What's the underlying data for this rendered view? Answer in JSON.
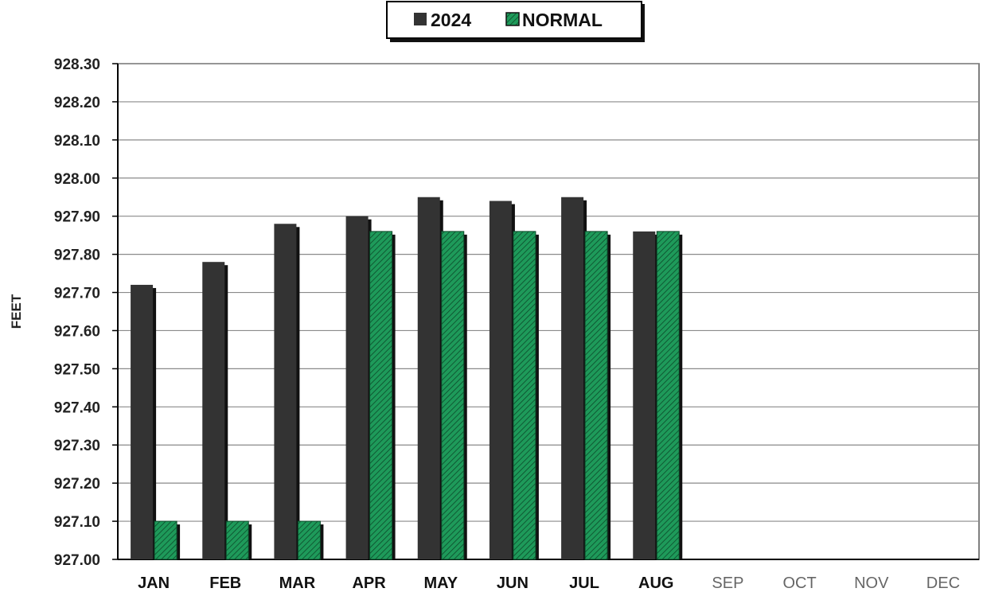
{
  "chart_data": {
    "type": "bar",
    "title": "",
    "xlabel": "",
    "ylabel": "FEET",
    "ylim": [
      927.0,
      928.3
    ],
    "yticks": [
      "927.00",
      "927.10",
      "927.20",
      "927.30",
      "927.40",
      "927.50",
      "927.60",
      "927.70",
      "927.80",
      "927.90",
      "928.00",
      "928.10",
      "928.20",
      "928.30"
    ],
    "categories": [
      "JAN",
      "FEB",
      "MAR",
      "APR",
      "MAY",
      "JUN",
      "JUL",
      "AUG",
      "SEP",
      "OCT",
      "NOV",
      "DEC"
    ],
    "series": [
      {
        "name": "2024",
        "color": "#333333",
        "values": [
          927.72,
          927.78,
          927.88,
          927.9,
          927.95,
          927.94,
          927.95,
          927.86,
          null,
          null,
          null,
          null
        ]
      },
      {
        "name": "NORMAL",
        "color": "#1e9a5a",
        "values": [
          927.1,
          927.1,
          927.1,
          927.86,
          927.86,
          927.86,
          927.86,
          927.86,
          null,
          null,
          null,
          null
        ]
      }
    ],
    "grid": true,
    "legend_position": "top-center"
  }
}
